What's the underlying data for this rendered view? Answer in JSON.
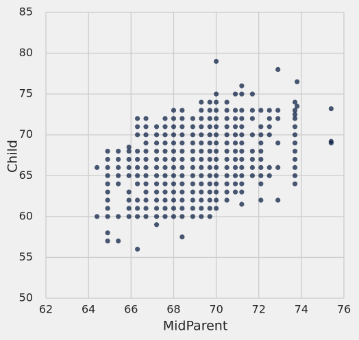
{
  "chart_data": {
    "type": "scatter",
    "x_label": "MidParent",
    "y_label": "Child",
    "color": "#0e2246",
    "grid": true,
    "xlim": [
      62,
      76
    ],
    "xticks": [
      62,
      64,
      66,
      68,
      70,
      72,
      74,
      76
    ],
    "ylim": [
      50,
      85
    ],
    "yticks": [
      50,
      55,
      60,
      65,
      70,
      75,
      80,
      85
    ],
    "x": [
      64.4,
      64.4,
      64.9,
      64.9,
      64.9,
      64.9,
      64.9,
      64.9,
      64.9,
      64.9,
      64.9,
      64.9,
      64.9,
      65.4,
      65.4,
      65.4,
      65.4,
      65.4,
      65.4,
      65.4,
      65.9,
      65.9,
      65.9,
      65.9,
      65.9,
      65.9,
      65.9,
      65.9,
      65.9,
      66.3,
      66.3,
      66.3,
      66.3,
      66.3,
      66.3,
      66.3,
      66.3,
      66.3,
      66.3,
      66.3,
      66.3,
      66.7,
      66.7,
      66.7,
      66.7,
      66.7,
      66.7,
      66.7,
      66.7,
      66.7,
      66.7,
      66.7,
      66.7,
      66.7,
      67.2,
      67.2,
      67.2,
      67.2,
      67.2,
      67.2,
      67.2,
      67.2,
      67.2,
      67.2,
      67.2,
      67.2,
      67.2,
      67.6,
      67.6,
      67.6,
      67.6,
      67.6,
      67.6,
      67.6,
      67.6,
      67.6,
      67.6,
      67.6,
      67.6,
      67.6,
      68.0,
      68.0,
      68.0,
      68.0,
      68.0,
      68.0,
      68.0,
      68.0,
      68.0,
      68.0,
      68.0,
      68.0,
      68.0,
      68.0,
      68.4,
      68.4,
      68.4,
      68.4,
      68.4,
      68.4,
      68.4,
      68.4,
      68.4,
      68.4,
      68.4,
      68.4,
      68.4,
      68.4,
      68.4,
      68.9,
      68.9,
      68.9,
      68.9,
      68.9,
      68.9,
      68.9,
      68.9,
      68.9,
      68.9,
      68.9,
      68.9,
      68.9,
      69.3,
      69.3,
      69.3,
      69.3,
      69.3,
      69.3,
      69.3,
      69.3,
      69.3,
      69.3,
      69.3,
      69.3,
      69.3,
      69.3,
      69.3,
      69.7,
      69.7,
      69.7,
      69.7,
      69.7,
      69.7,
      69.7,
      69.7,
      69.7,
      69.7,
      69.7,
      69.7,
      69.7,
      69.7,
      69.7,
      70.0,
      70.0,
      70.0,
      70.0,
      70.0,
      70.0,
      70.0,
      70.0,
      70.0,
      70.0,
      70.0,
      70.0,
      70.0,
      70.0,
      70.0,
      70.0,
      70.5,
      70.5,
      70.5,
      70.5,
      70.5,
      70.5,
      70.5,
      70.5,
      70.5,
      70.5,
      70.5,
      70.5,
      70.5,
      70.9,
      70.9,
      70.9,
      70.9,
      70.9,
      70.9,
      70.9,
      70.9,
      70.9,
      70.9,
      70.9,
      70.9,
      71.2,
      71.2,
      71.2,
      71.2,
      71.2,
      71.2,
      71.2,
      71.2,
      71.2,
      71.2,
      71.2,
      71.2,
      71.2,
      71.2,
      71.7,
      71.7,
      71.7,
      71.7,
      71.7,
      71.7,
      71.7,
      71.7,
      72.1,
      72.1,
      72.1,
      72.1,
      72.1,
      72.1,
      72.1,
      72.1,
      72.1,
      72.1,
      72.5,
      72.5,
      72.5,
      72.5,
      72.5,
      72.5,
      72.9,
      72.9,
      72.9,
      72.9,
      72.9,
      72.9,
      73.7,
      73.7,
      73.7,
      73.7,
      73.7,
      73.7,
      73.7,
      73.7,
      73.7,
      73.7,
      73.7,
      73.7,
      73.8,
      73.8,
      75.4,
      75.4,
      75.4
    ],
    "values": [
      66,
      60,
      68,
      67,
      66,
      65,
      64,
      63,
      62,
      61,
      60,
      58,
      57,
      68,
      67,
      66,
      65,
      64,
      60,
      57,
      68.5,
      68,
      67,
      66,
      65,
      63,
      62,
      61,
      60,
      72,
      71,
      70,
      68,
      67,
      66,
      65,
      64,
      62,
      61,
      60,
      56,
      72,
      71,
      70,
      69,
      68,
      67,
      66,
      65,
      64,
      63,
      62,
      61,
      60,
      71,
      70,
      69,
      68,
      67,
      66,
      65,
      64,
      63,
      62,
      61,
      60,
      59,
      72,
      71,
      70,
      69,
      68,
      67,
      66,
      65,
      64,
      63,
      62,
      61,
      60,
      73,
      72,
      71,
      70,
      69,
      68,
      67,
      66,
      65,
      64,
      63,
      62,
      61,
      60,
      73,
      72,
      71,
      70,
      69,
      68,
      67,
      66,
      65,
      64,
      63,
      62,
      61,
      60,
      57.5,
      72,
      71,
      70,
      69,
      68,
      67,
      66,
      65,
      64,
      63,
      62,
      61,
      60,
      74,
      73,
      72,
      71,
      70,
      69,
      68,
      67,
      66,
      65,
      64,
      63,
      62,
      61,
      60,
      74,
      73,
      72,
      71,
      70,
      69,
      68,
      67,
      66,
      65,
      64,
      63,
      62,
      61,
      60,
      79,
      75,
      74,
      73,
      72,
      71,
      70,
      69,
      68,
      67,
      66,
      65,
      64,
      63,
      62,
      61,
      74,
      73,
      72,
      71,
      70,
      69,
      68,
      67,
      66,
      65,
      64,
      63,
      62,
      75,
      73,
      72,
      71,
      70,
      69,
      68,
      67,
      66,
      65,
      64,
      63,
      76,
      75,
      73,
      72,
      71,
      70,
      69,
      68,
      67,
      66,
      65,
      64,
      63,
      61.5,
      75,
      73,
      72,
      70,
      68,
      67,
      66,
      65,
      73,
      71,
      70,
      69,
      68,
      67,
      66,
      65,
      64,
      62,
      73,
      72,
      71,
      70,
      66,
      65,
      78,
      73,
      72,
      69,
      66,
      62,
      74,
      73,
      72.5,
      72,
      71,
      70,
      69,
      68,
      67,
      66,
      65,
      64,
      76.5,
      73.5,
      73.2,
      69,
      69.2
    ]
  }
}
